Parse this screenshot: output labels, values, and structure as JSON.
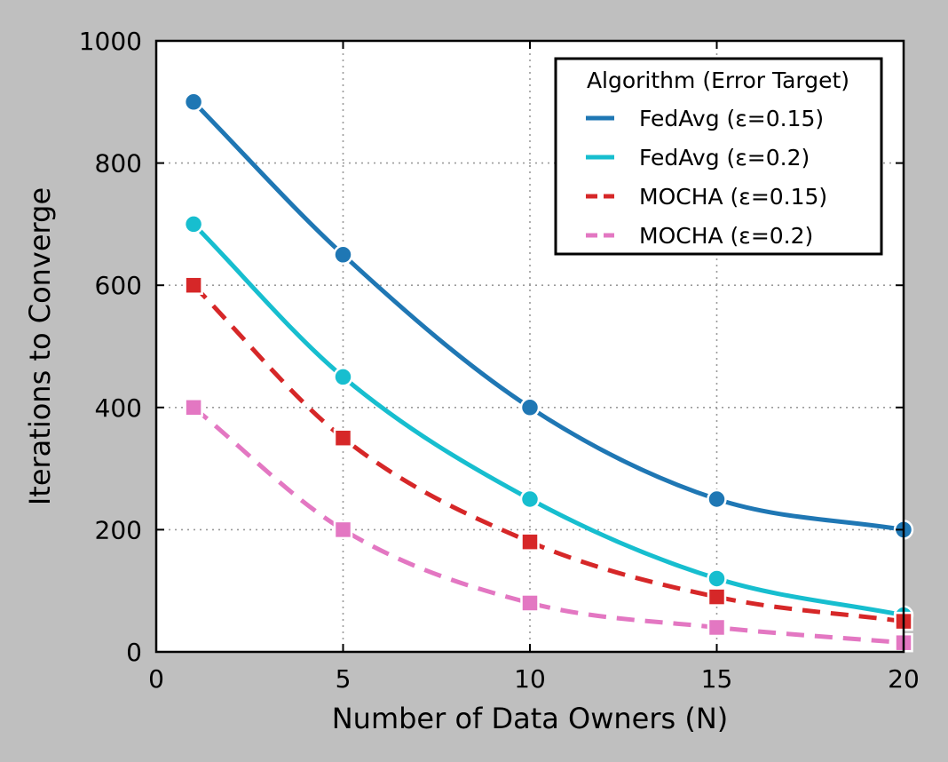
{
  "chart_data": {
    "type": "line",
    "xlabel": "Number of Data Owners (N)",
    "ylabel": "Iterations to Converge",
    "xlim": [
      0,
      20
    ],
    "ylim": [
      0,
      1000
    ],
    "xticks": [
      "0",
      "5",
      "10",
      "15",
      "20"
    ],
    "yticks": [
      "0",
      "200",
      "400",
      "600",
      "800",
      "1000"
    ],
    "grid": true,
    "legend": {
      "title": "Algorithm (Error Target)",
      "placement": "top-right"
    },
    "x": [
      1,
      5,
      10,
      15,
      20
    ],
    "series": [
      {
        "name": "FedAvg (ε=0.15)",
        "values": [
          900,
          650,
          400,
          250,
          200
        ],
        "color": "#1f77b4",
        "line_style": "solid",
        "marker": "circle"
      },
      {
        "name": "FedAvg (ε=0.2)",
        "values": [
          700,
          450,
          250,
          120,
          60
        ],
        "color": "#17becf",
        "line_style": "solid",
        "marker": "circle"
      },
      {
        "name": "MOCHA (ε=0.15)",
        "values": [
          600,
          350,
          180,
          90,
          50
        ],
        "color": "#d62728",
        "line_style": "dashed",
        "marker": "square"
      },
      {
        "name": "MOCHA (ε=0.2)",
        "values": [
          400,
          200,
          80,
          40,
          15
        ],
        "color": "#e377c2",
        "line_style": "dashed",
        "marker": "square"
      }
    ]
  }
}
